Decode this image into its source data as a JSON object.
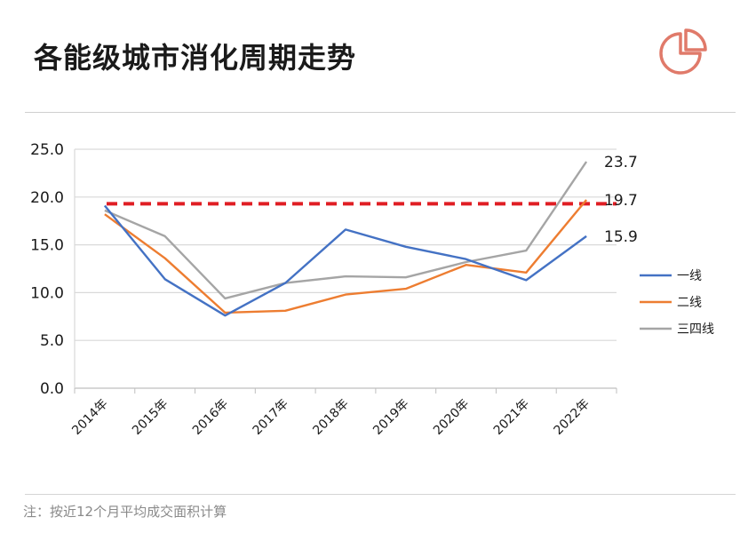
{
  "title": "各能级城市消化周期走势",
  "footnote": "注：按近12个月平均成交面积计算",
  "icon": "pie-chart-logo",
  "colors": {
    "accent_logo": "#e07a6a",
    "reference_line": "#e01e24"
  },
  "chart_data": {
    "type": "line",
    "categories": [
      "2014年",
      "2015年",
      "2016年",
      "2017年",
      "2018年",
      "2019年",
      "2020年",
      "2021年",
      "2022年"
    ],
    "ylim": [
      0,
      25
    ],
    "yticks": [
      "0.0",
      "5.0",
      "10.0",
      "15.0",
      "20.0",
      "25.0"
    ],
    "grid": true,
    "legend_position": "right",
    "reference_line": {
      "value": 19.3,
      "style": "dashed"
    },
    "series": [
      {
        "name": "一线",
        "color": "#4472c4",
        "values": [
          19.1,
          11.4,
          7.6,
          11.0,
          16.6,
          14.8,
          13.5,
          11.3,
          15.9
        ],
        "end_label": "15.9"
      },
      {
        "name": "二线",
        "color": "#ed7d31",
        "values": [
          18.2,
          13.6,
          7.9,
          8.1,
          9.8,
          10.4,
          12.9,
          12.1,
          19.7
        ],
        "end_label": "19.7"
      },
      {
        "name": "三四线",
        "color": "#a5a5a5",
        "values": [
          18.6,
          15.9,
          9.4,
          11.0,
          11.7,
          11.6,
          13.2,
          14.4,
          23.7
        ],
        "end_label": "23.7"
      }
    ]
  }
}
